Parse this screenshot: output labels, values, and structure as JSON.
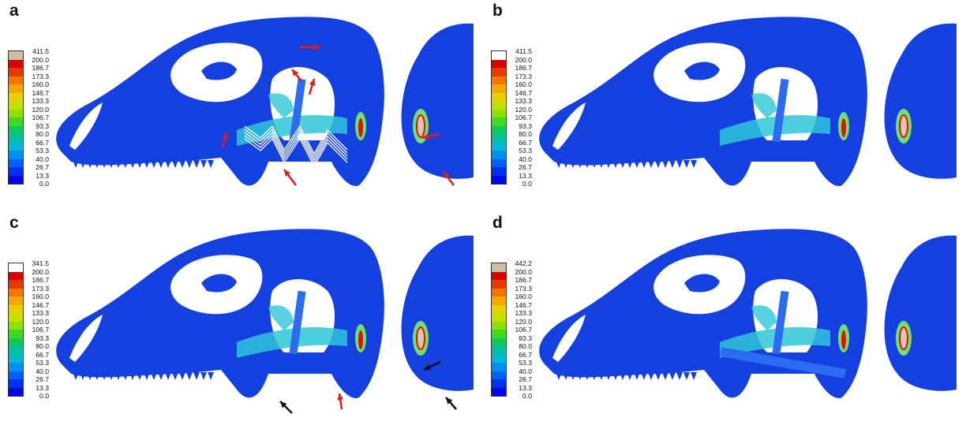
{
  "panels": [
    {
      "label": "a",
      "legend_max": "411.5",
      "max_color": "#c8bfa6"
    },
    {
      "label": "b",
      "legend_max": "411.5",
      "max_color": "#ffffff"
    },
    {
      "label": "c",
      "legend_max": "341.5",
      "max_color": "#ffffff"
    },
    {
      "label": "d",
      "legend_max": "442.2",
      "max_color": "#c8bfa6"
    }
  ],
  "legend_ticks": [
    "200.0",
    "186.7",
    "173.3",
    "160.0",
    "146.7",
    "133.3",
    "120.0",
    "106.7",
    "93.3",
    "80.0",
    "66.7",
    "53.3",
    "40.0",
    "26.7",
    "13.3",
    "0.0"
  ],
  "legend_colors": [
    "#d80000",
    "#e83a00",
    "#f07800",
    "#f2a800",
    "#e6d000",
    "#c4e000",
    "#8ee000",
    "#40d820",
    "#10c860",
    "#00c0a0",
    "#00b8d8",
    "#0090f0",
    "#0060f8",
    "#0030f0",
    "#0008e8"
  ],
  "colors": {
    "bone": "#1540e0",
    "bone_light": "#2b6cf0",
    "cyan": "#2fc7d8",
    "green": "#6fe06a",
    "red": "#e01010",
    "arrow_red": "#e21a1a",
    "arrow_black": "#111111"
  },
  "icons": [
    "red-arrow-icon",
    "black-arrow-icon"
  ]
}
